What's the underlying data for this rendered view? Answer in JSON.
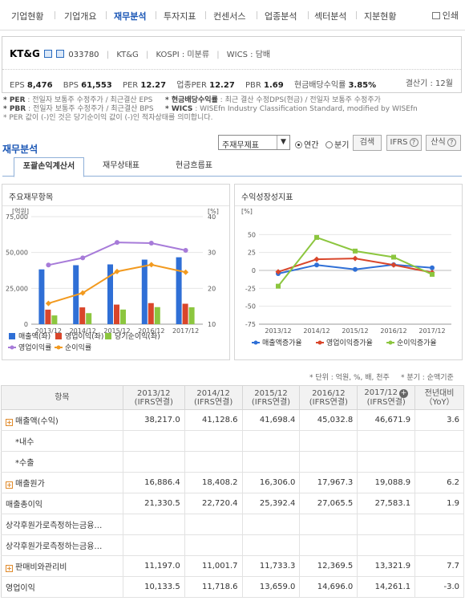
{
  "nav": {
    "tabs": [
      {
        "label": "기업현황"
      },
      {
        "label": "기업개요"
      },
      {
        "label": "재무분석"
      },
      {
        "label": "투자지표"
      },
      {
        "label": "컨센서스"
      },
      {
        "label": "업종분석"
      },
      {
        "label": "섹터분석"
      },
      {
        "label": "지분현황"
      }
    ],
    "print_label": "인쇄"
  },
  "company": {
    "name": "KT&G",
    "code": "033780",
    "short_name": "KT&G",
    "market": "KOSPI : 미분류",
    "wics": "WICS : 담배",
    "fiscal": "결산기 : 12월",
    "metrics": [
      {
        "label": "EPS",
        "value": "8,476"
      },
      {
        "label": "BPS",
        "value": "61,553"
      },
      {
        "label": "PER",
        "value": "12.27"
      },
      {
        "label": "업종PER",
        "value": "12.27"
      },
      {
        "label": "PBR",
        "value": "1.69"
      },
      {
        "label": "현금배당수익률",
        "value": "3.85%"
      }
    ]
  },
  "notes": {
    "per_k": "* PER",
    "per_t": " : 전일자 보통주 수정주가 / 최근결산 EPS",
    "pbr_k": "* PBR",
    "pbr_t": " : 전일자 보통주 수정주가 / 최근결산 BPS",
    "div_k": "* 현금배당수익률",
    "div_t": " : 최근 결산 수정DPS(현금) / 전일자 보통주 수정주가",
    "wics_k": "* WICS",
    "wics_t": " : WISEfn Industry Classification Standard, modified by WISEfn",
    "neg": "* PER 값이 (-)인 것은 당기순이익 값이 (-)인 적자상태를 의미합니다."
  },
  "section": {
    "title": "재무분석",
    "select_value": "주재무제표",
    "radio_annual": "연간",
    "radio_quarter": "분기",
    "search_btn": "검색",
    "ifrs_btn": "IFRS",
    "calc_btn": "산식"
  },
  "subtabs": [
    {
      "label": "포괄손익계산서"
    },
    {
      "label": "재무상태표"
    },
    {
      "label": "현금흐름표"
    }
  ],
  "chart_left_title": "주요재무항목",
  "chart_right_title": "수익성장성지표",
  "chart_data": [
    {
      "type": "bar",
      "title": "주요재무항목",
      "ylabel": "[억원]",
      "y2label": "[%]",
      "categories": [
        "2013/12",
        "2014/12",
        "2015/12",
        "2016/12",
        "2017/12"
      ],
      "ylim": [
        0,
        75000
      ],
      "y2lim": [
        10,
        40
      ],
      "yticks": [
        "0",
        "25,000",
        "50,000",
        "75,000"
      ],
      "y2ticks": [
        "10",
        "20",
        "30",
        "40"
      ],
      "series": [
        {
          "name": "매출액(좌)",
          "kind": "bar",
          "color": "#2f6fd6",
          "values": [
            38217.0,
            41128.6,
            41698.4,
            45032.8,
            46671.9
          ]
        },
        {
          "name": "영업이익(좌)",
          "kind": "bar",
          "color": "#d9462b",
          "values": [
            10133.5,
            11718.6,
            13659.0,
            14696.0,
            14261.1
          ]
        },
        {
          "name": "당기순이익(좌)",
          "kind": "bar",
          "color": "#8cc63f",
          "values": [
            6100,
            7700,
            10200,
            11900,
            11800
          ]
        },
        {
          "name": "영업이익률",
          "kind": "line",
          "color": "#a77bd9",
          "values": [
            26.5,
            28.5,
            32.8,
            32.6,
            30.6
          ]
        },
        {
          "name": "순이익률",
          "kind": "line",
          "color": "#f29a1f",
          "values": [
            15.8,
            18.7,
            24.7,
            26.6,
            24.5
          ]
        }
      ],
      "legend_position": "bottom"
    },
    {
      "type": "line",
      "title": "수익성장성지표",
      "categories": [
        "2013/12",
        "2014/12",
        "2015/12",
        "2016/12",
        "2017/12"
      ],
      "ylabel": "[%]",
      "ylim": [
        -75,
        75
      ],
      "yticks": [
        "-75",
        "-50",
        "-25",
        "0",
        "25",
        "50"
      ],
      "series": [
        {
          "name": "매출액증가율",
          "color": "#2f6fd6",
          "values": [
            -4.5,
            7.6,
            1.4,
            8.0,
            3.6
          ]
        },
        {
          "name": "영업이익증가율",
          "color": "#d9462b",
          "values": [
            -2.0,
            15.6,
            16.6,
            7.6,
            -3.0
          ]
        },
        {
          "name": "순이익증가율",
          "color": "#8cc63f",
          "values": [
            -22.0,
            46.0,
            27.0,
            18.5,
            -5.5
          ]
        }
      ],
      "legend_position": "bottom"
    }
  ],
  "units_note": "* 단위 : 억원, %, 배, 천주",
  "period_note": "* 분기 : 순액기준",
  "table": {
    "headers": [
      {
        "h": "항목"
      },
      {
        "h": "2013/12",
        "sub": "(IFRS연결)"
      },
      {
        "h": "2014/12",
        "sub": "(IFRS연결)"
      },
      {
        "h": "2015/12",
        "sub": "(IFRS연결)"
      },
      {
        "h": "2016/12",
        "sub": "(IFRS연결)"
      },
      {
        "h": "2017/12",
        "sub": "(IFRS연결)"
      },
      {
        "h": "전년대비",
        "sub": "（YoY）"
      }
    ],
    "rows": [
      {
        "label": "매출액(수익)",
        "expand": true,
        "values": [
          "38,217.0",
          "41,128.6",
          "41,698.4",
          "45,032.8",
          "46,671.9",
          "3.6"
        ]
      },
      {
        "label": "*내수",
        "expand": false,
        "indent": true,
        "values": [
          "",
          "",
          "",
          "",
          "",
          ""
        ]
      },
      {
        "label": "*수출",
        "expand": false,
        "indent": true,
        "values": [
          "",
          "",
          "",
          "",
          "",
          ""
        ]
      },
      {
        "label": "매출원가",
        "expand": true,
        "values": [
          "16,886.4",
          "18,408.2",
          "16,306.0",
          "17,967.3",
          "19,088.9",
          "6.2"
        ]
      },
      {
        "label": "매출총이익",
        "expand": false,
        "values": [
          "21,330.5",
          "22,720.4",
          "25,392.4",
          "27,065.5",
          "27,583.1",
          "1.9"
        ]
      },
      {
        "label": "상각후원가로측정하는금융…",
        "expand": false,
        "values": [
          "",
          "",
          "",
          "",
          "",
          ""
        ]
      },
      {
        "label": "상각후원가로측정하는금융…",
        "expand": false,
        "values": [
          "",
          "",
          "",
          "",
          "",
          ""
        ]
      },
      {
        "label": "판매비와관리비",
        "expand": true,
        "values": [
          "11,197.0",
          "11,001.7",
          "11,733.3",
          "12,369.5",
          "13,321.9",
          "7.7"
        ]
      },
      {
        "label": "영업이익",
        "expand": false,
        "values": [
          "10,133.5",
          "11,718.6",
          "13,659.0",
          "14,696.0",
          "14,261.1",
          "-3.0"
        ]
      }
    ]
  }
}
